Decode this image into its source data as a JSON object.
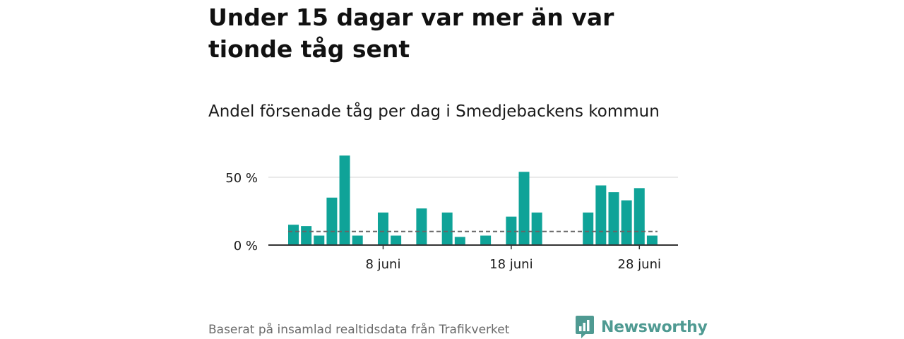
{
  "header": {
    "title": "Under 15 dagar var mer än var tionde tåg sent",
    "subtitle": "Andel försenade tåg per dag i Smedjebackens kommun"
  },
  "footer": {
    "source": "Baserat på insamlad realtidsdata från Trafikverket",
    "brand": "Newsworthy"
  },
  "colors": {
    "bar": "#0fa398",
    "reference_line": "#666666",
    "gridline": "#dddddd",
    "brand": "#4f9a92"
  },
  "icons": {
    "logo": "bar-chart-speech-bubble-icon"
  },
  "chart_data": {
    "type": "bar",
    "x": [
      "1 juni",
      "2 juni",
      "3 juni",
      "4 juni",
      "5 juni",
      "6 juni",
      "7 juni",
      "8 juni",
      "9 juni",
      "10 juni",
      "11 juni",
      "12 juni",
      "13 juni",
      "14 juni",
      "15 juni",
      "16 juni",
      "17 juni",
      "18 juni",
      "19 juni",
      "20 juni",
      "21 juni",
      "22 juni",
      "23 juni",
      "24 juni",
      "25 juni",
      "26 juni",
      "27 juni",
      "28 juni",
      "29 juni"
    ],
    "values": [
      15,
      14,
      7,
      35,
      66,
      7,
      0,
      24,
      7,
      0,
      27,
      0,
      24,
      6,
      0,
      7,
      0,
      21,
      54,
      24,
      0,
      0,
      0,
      24,
      44,
      39,
      33,
      42,
      7
    ],
    "reference_line": 10,
    "x_ticks": [
      {
        "x": "8 juni",
        "label": "8 juni"
      },
      {
        "x": "18 juni",
        "label": "18 juni"
      },
      {
        "x": "28 juni",
        "label": "28 juni"
      }
    ],
    "y_ticks": [
      {
        "value": 0,
        "label": "0 %"
      },
      {
        "value": 50,
        "label": "50 %"
      }
    ],
    "ylim": [
      0,
      70
    ],
    "grid": true
  }
}
